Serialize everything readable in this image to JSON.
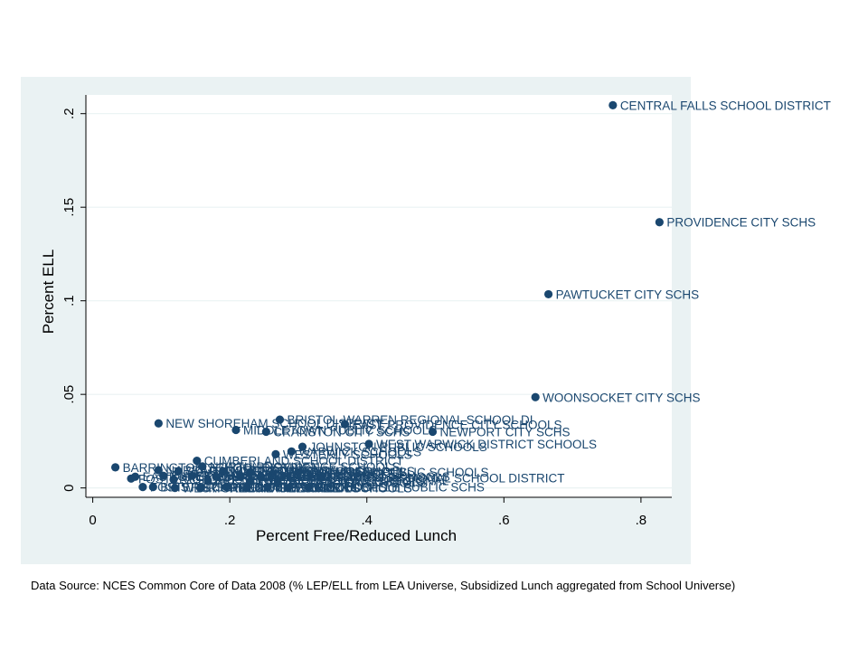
{
  "chart_data": {
    "type": "scatter",
    "title": "",
    "xlabel": "Percent Free/Reduced Lunch",
    "ylabel": "Percent ELL",
    "xlim": [
      -0.01,
      0.845
    ],
    "ylim": [
      -0.005,
      0.21
    ],
    "xticks": [
      0,
      0.2,
      0.4,
      0.6,
      0.8
    ],
    "xtick_labels": [
      "0",
      ".2",
      ".4",
      ".6",
      ".8"
    ],
    "yticks": [
      0,
      0.05,
      0.1,
      0.15,
      0.2
    ],
    "ytick_labels": [
      "0",
      ".05",
      ".1",
      ".15",
      ".2"
    ],
    "grid": true,
    "marker_color": "#1a476f",
    "label_color": "#1a476f",
    "plot_bg": "#ffffff",
    "outer_bg": "#eaf2f3",
    "grid_color": "#eaf2f3",
    "points": [
      {
        "x": 0.759,
        "y": 0.2045,
        "label": "CENTRAL FALLS SCHOOL DISTRICT"
      },
      {
        "x": 0.827,
        "y": 0.142,
        "label": "PROVIDENCE CITY SCHS"
      },
      {
        "x": 0.665,
        "y": 0.1035,
        "label": "PAWTUCKET CITY SCHS"
      },
      {
        "x": 0.646,
        "y": 0.0485,
        "label": "WOONSOCKET CITY SCHS"
      },
      {
        "x": 0.096,
        "y": 0.0345,
        "label": "NEW SHOREHAM SCHOOL DISTRICT"
      },
      {
        "x": 0.273,
        "y": 0.0365,
        "label": "BRISTOL-WARREN REGIONAL SCHOOL DI"
      },
      {
        "x": 0.368,
        "y": 0.034,
        "label": "EAST PROVIDENCE CITY SCHOOLS"
      },
      {
        "x": 0.209,
        "y": 0.031,
        "label": "MIDDLETOWN PUBLIC SCHOOLS"
      },
      {
        "x": 0.253,
        "y": 0.03,
        "label": "CRANSTON CITY SCHS"
      },
      {
        "x": 0.496,
        "y": 0.03,
        "label": "NEWPORT CITY SCHS"
      },
      {
        "x": 0.403,
        "y": 0.0235,
        "label": "WEST WARWICK DISTRICT SCHOOLS"
      },
      {
        "x": 0.306,
        "y": 0.022,
        "label": "JOHNSTON PUBLIC SCHOOLS"
      },
      {
        "x": 0.29,
        "y": 0.0195,
        "label": "WARWICK SCHOOLS"
      },
      {
        "x": 0.267,
        "y": 0.018,
        "label": "WESTERLY SCHOOLS"
      },
      {
        "x": 0.152,
        "y": 0.0145,
        "label": "CUMBERLAND SCHOOL DISTRICT"
      },
      {
        "x": 0.033,
        "y": 0.011,
        "label": "BARRINGTON SCHOOL DISTRICT"
      },
      {
        "x": 0.16,
        "y": 0.0115,
        "label": "NORTH PROVIDENCE SCHOOLS"
      },
      {
        "x": 0.096,
        "y": 0.0095,
        "label": "NARRAGANSETT SCHOOLS"
      },
      {
        "x": 0.125,
        "y": 0.009,
        "label": "SOUTH KINGSTOWN SCHOOLS"
      },
      {
        "x": 0.19,
        "y": 0.009,
        "label": "NORTH KINGSTOWN SCHOOLS"
      },
      {
        "x": 0.23,
        "y": 0.0085,
        "label": "PORTSMOUTH SCHOOLS"
      },
      {
        "x": 0.262,
        "y": 0.0075,
        "label": "LINCOLN SCHOOLS"
      },
      {
        "x": 0.3,
        "y": 0.0085,
        "label": "SMITHFIELD PUBLIC SCHOOLS"
      },
      {
        "x": 0.062,
        "y": 0.006,
        "label": "EAST GREENWICH SCHOOLS"
      },
      {
        "x": 0.103,
        "y": 0.0065,
        "label": "JAMESTOWN SCHOOLS"
      },
      {
        "x": 0.145,
        "y": 0.0065,
        "label": "TIVERTON SCHOOLS"
      },
      {
        "x": 0.18,
        "y": 0.006,
        "label": "BURRILLVILLE SCHOOLS"
      },
      {
        "x": 0.215,
        "y": 0.006,
        "label": "COVENTRY SCHOOLS"
      },
      {
        "x": 0.245,
        "y": 0.006,
        "label": "NORTH SMITHFIELD SCHOOLS"
      },
      {
        "x": 0.333,
        "y": 0.0055,
        "label": "CHARIHO REGIONAL SCHOOL DISTRICT"
      },
      {
        "x": 0.056,
        "y": 0.005,
        "label": "FOSTER-GLOCESTER REGIONAL"
      },
      {
        "x": 0.118,
        "y": 0.0045,
        "label": "SCITUATE SCHOOLS"
      },
      {
        "x": 0.168,
        "y": 0.004,
        "label": "EXETER-WEST GREENWICH REGIONAL"
      },
      {
        "x": 0.23,
        "y": 0.0035,
        "label": "LITTLE COMPTON SCHOOLS"
      },
      {
        "x": 0.27,
        "y": 0.003,
        "label": "GLOCESTER SCHOOLS"
      },
      {
        "x": 0.073,
        "y": 0.0005,
        "label": "FOSTER SCHOOLS"
      },
      {
        "x": 0.088,
        "y": 0.0005,
        "label": "BRISTOL SCHOOLS"
      },
      {
        "x": 0.12,
        "y": 0.0,
        "label": "WEST GREENWICH SCHOOLS"
      },
      {
        "x": 0.158,
        "y": 0.0,
        "label": "RICHMOND SCHOOLS"
      },
      {
        "x": 0.195,
        "y": 0.0005,
        "label": "HOPKINTON SCHOOLS"
      },
      {
        "x": 0.225,
        "y": 0.0,
        "label": "CHARLESTOWN SCHOOLS"
      },
      {
        "x": 0.255,
        "y": 0.0005,
        "label": "EXETER SCHOOLS"
      },
      {
        "x": 0.285,
        "y": 0.0,
        "label": "WARREN SCHOOLS"
      },
      {
        "x": 0.315,
        "y": 0.0005,
        "label": "BURRILLVILLE PUBLIC SCHS"
      }
    ]
  },
  "source_note": "Data Source: NCES Common Core of Data 2008 (% LEP/ELL from LEA Universe, Subsidized Lunch aggregated from School Universe)"
}
